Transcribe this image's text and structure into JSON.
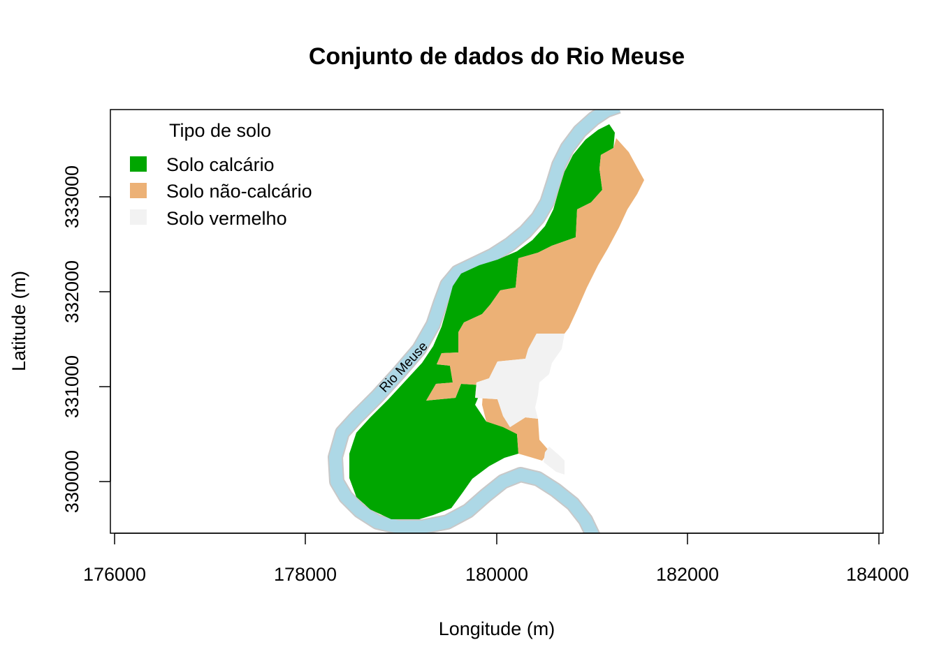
{
  "title": "Conjunto de dados do Rio Meuse",
  "xlabel": "Longitude (m)",
  "ylabel": "Latitude (m)",
  "x_ticks": [
    "176000",
    "178000",
    "180000",
    "182000",
    "184000"
  ],
  "y_ticks": [
    "330000",
    "331000",
    "332000",
    "333000"
  ],
  "river_label": "Rio Meuse",
  "legend": {
    "title": "Tipo de solo",
    "items": [
      {
        "label": "Solo calcário",
        "color": "#00a600"
      },
      {
        "label": "Solo não-calcário",
        "color": "#ecb176"
      },
      {
        "label": "Solo vermelho",
        "color": "#f2f2f2"
      }
    ]
  },
  "colors": {
    "river": "#add8e6",
    "river_edge": "#c8c8c8",
    "calcareous": "#00a600",
    "non_calcareous": "#ecb176",
    "red_soil": "#f2f2f2"
  }
}
